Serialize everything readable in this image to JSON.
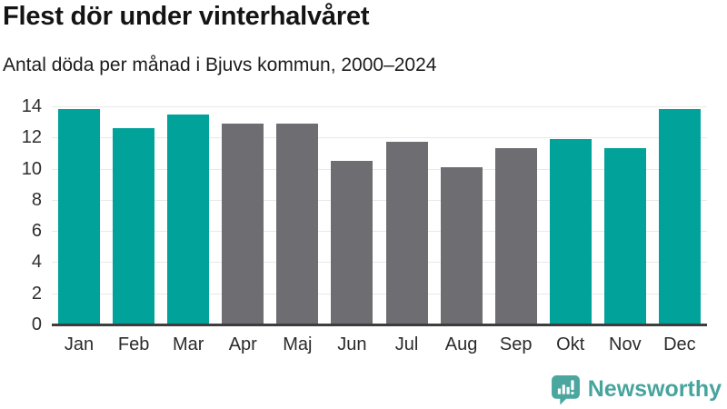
{
  "header": {
    "title": "Flest dör under vinterhalvåret",
    "subtitle": "Antal döda per månad i Bjuvs kommun, 2000–2024"
  },
  "chart_data": {
    "type": "bar",
    "title": "Flest dör under vinterhalvåret",
    "subtitle": "Antal döda per månad i Bjuvs kommun, 2000–2024",
    "categories": [
      "Jan",
      "Feb",
      "Mar",
      "Apr",
      "Maj",
      "Jun",
      "Jul",
      "Aug",
      "Sep",
      "Okt",
      "Nov",
      "Dec"
    ],
    "values": [
      13.8,
      12.6,
      13.5,
      12.9,
      12.9,
      10.5,
      11.7,
      10.1,
      11.3,
      11.9,
      11.3,
      13.8
    ],
    "bar_color_keys": [
      "highlight",
      "highlight",
      "highlight",
      "muted",
      "muted",
      "muted",
      "muted",
      "muted",
      "muted",
      "highlight",
      "highlight",
      "highlight"
    ],
    "palette": {
      "highlight": "#00a29a",
      "muted": "#6d6d72"
    },
    "xlabel": "",
    "ylabel": "",
    "ylim": [
      0,
      14
    ],
    "yticks": [
      0,
      2,
      4,
      6,
      8,
      10,
      12,
      14
    ],
    "grid": "horizontal",
    "gridline_color": "#e9e9e9",
    "axis_line_color": "#3d3d3d",
    "legend": "none"
  },
  "footer": {
    "brand": "Newsworthy",
    "brand_color": "#47a49d",
    "brand_icon": "bar-chart-speech-bubble-icon",
    "icon_color": "#4aa69f"
  }
}
